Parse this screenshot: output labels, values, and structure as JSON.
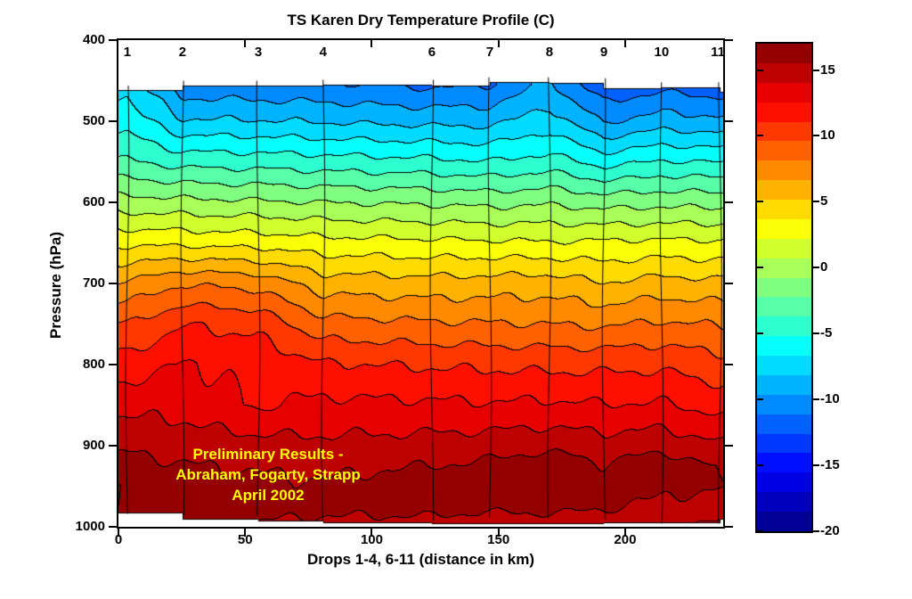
{
  "title": "TS Karen Dry Temperature Profile (C)",
  "xlabel": "Drops 1-4, 6-11 (distance in km)",
  "ylabel": "Pressure (hPa)",
  "annotation": {
    "lines": [
      "Preliminary Results -",
      "Abraham, Fogarty, Strapp",
      "April 2002"
    ],
    "color": "#FFFF00"
  },
  "axes": {
    "x_tick_labels": [
      "0",
      "50",
      "100",
      "150",
      "200"
    ],
    "x_tick_km": [
      0,
      50,
      100,
      150,
      200
    ],
    "y_tick_labels": [
      "400",
      "500",
      "600",
      "700",
      "800",
      "900",
      "1000"
    ],
    "y_tick_hpa": [
      400,
      500,
      600,
      700,
      800,
      900,
      1000
    ]
  },
  "colorbar": {
    "tick_labels": [
      "15",
      "10",
      "5",
      "0",
      "-5",
      "-10",
      "-15",
      "-20"
    ],
    "tick_values": [
      15,
      10,
      5,
      0,
      -5,
      -10,
      -15,
      -20
    ],
    "vmin": -20,
    "vmax": 17,
    "bands": 25,
    "palette_stops": {
      "0.00": "#000080",
      "0.125": "#0000FF",
      "0.375": "#00FFFF",
      "0.50": "#80FF80",
      "0.625": "#FFFF00",
      "0.875": "#FF0000",
      "1.00": "#800000"
    }
  },
  "chart_data": {
    "type": "filled-contour",
    "title": "TS Karen Dry Temperature Profile (C)",
    "xlabel": "Drops 1-4, 6-11 (distance in km)",
    "ylabel": "Pressure (hPa)",
    "x_range_km": [
      0,
      238.7
    ],
    "y_range_hpa": [
      400,
      1000
    ],
    "y_axis_reversed": true,
    "grid": false,
    "colormap": "jet",
    "contour_interval_c": 1.48,
    "color_limits_c": [
      -20,
      17
    ],
    "drops": {
      "labels": [
        "1",
        "2",
        "3",
        "4",
        "6",
        "7",
        "8",
        "9",
        "10",
        "11"
      ],
      "x_km": [
        3.5,
        25.3,
        55.2,
        80.8,
        123.7,
        146.6,
        170.1,
        191.6,
        214.4,
        237.5
      ]
    },
    "pressure_levels_hpa": [
      455,
      500,
      550,
      600,
      650,
      700,
      750,
      800,
      850,
      900,
      925,
      950,
      975,
      1000
    ],
    "temperature_c_by_drop": [
      [
        -7.0,
        -5.8,
        -3.6,
        -0.2,
        3.4,
        6.8,
        9.6,
        11.8,
        13.6,
        15.2,
        16.1,
        16.9,
        17.0,
        16.6
      ],
      [
        -10.6,
        -8.0,
        -4.3,
        -0.4,
        3.3,
        8.0,
        11.0,
        12.6,
        13.5,
        14.9,
        15.6,
        16.2,
        16.5,
        16.4
      ],
      [
        -10.8,
        -8.1,
        -4.4,
        -0.6,
        3.1,
        7.6,
        10.6,
        12.2,
        12.4,
        14.6,
        15.3,
        15.9,
        16.2,
        15.3
      ],
      [
        -10.9,
        -8.3,
        -4.6,
        -0.8,
        2.7,
        5.9,
        8.6,
        11.2,
        12.9,
        14.4,
        15.1,
        15.7,
        16.0,
        15.0
      ],
      [
        -11.4,
        -8.6,
        -4.9,
        -1.0,
        2.5,
        5.7,
        8.3,
        10.9,
        12.8,
        14.6,
        15.5,
        16.5,
        16.1,
        14.9
      ],
      [
        -11.2,
        -8.6,
        -5.2,
        -1.2,
        2.4,
        5.8,
        8.2,
        10.8,
        12.7,
        14.8,
        15.8,
        16.2,
        15.9,
        14.6
      ],
      [
        -9.3,
        -7.4,
        -4.6,
        -1.0,
        2.3,
        5.9,
        8.1,
        10.7,
        12.8,
        15.1,
        16.5,
        16.6,
        16.0,
        14.7
      ],
      [
        -12.3,
        -9.8,
        -5.8,
        -1.4,
        2.4,
        5.2,
        7.9,
        10.7,
        12.6,
        14.7,
        15.6,
        16.1,
        15.7,
        14.5
      ],
      [
        -11.7,
        -9.0,
        -5.1,
        -1.2,
        2.5,
        5.7,
        8.3,
        10.8,
        12.7,
        15.0,
        16.45,
        16.0,
        15.2,
        14.3
      ],
      [
        -12.1,
        -9.3,
        -5.3,
        -1.3,
        2.4,
        5.5,
        8.0,
        10.2,
        12.0,
        14.2,
        15.3,
        15.6,
        14.8,
        13.8
      ]
    ],
    "top_boundary_hpa": [
      462,
      462,
      456,
      456,
      455,
      456,
      452,
      453,
      459,
      458,
      464
    ],
    "bottom_boundary_hpa": [
      984,
      984,
      991,
      993,
      996,
      997,
      997,
      997,
      996,
      996,
      991
    ]
  }
}
